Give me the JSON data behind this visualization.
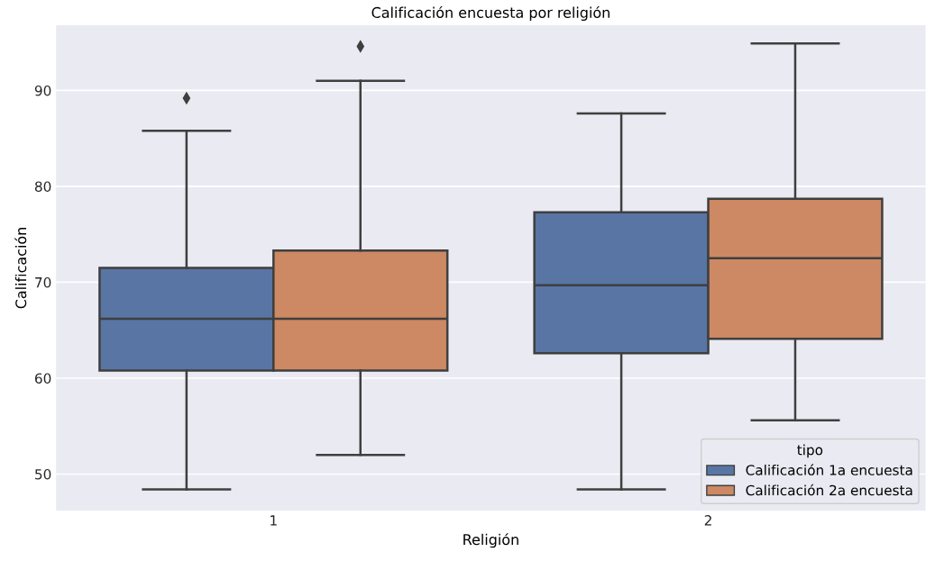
{
  "chart_data": {
    "type": "box",
    "title": "Calificación encuesta por religión",
    "xlabel": "Religión",
    "ylabel": "Calificación",
    "legend_title": "tipo",
    "categories": [
      "1",
      "2"
    ],
    "series": [
      {
        "name": "Calificación 1a encuesta",
        "color": "#5875a4",
        "boxes": [
          {
            "low": 48.4,
            "q1": 60.8,
            "median": 66.2,
            "q3": 71.5,
            "high": 85.8,
            "outliers": [
              89.2
            ]
          },
          {
            "low": 48.4,
            "q1": 62.6,
            "median": 69.7,
            "q3": 77.3,
            "high": 87.6
          }
        ]
      },
      {
        "name": "Calificación 2a encuesta",
        "color": "#cc8963",
        "boxes": [
          {
            "low": 52.0,
            "q1": 60.8,
            "median": 66.2,
            "q3": 73.3,
            "high": 91.0,
            "outliers": [
              94.6
            ]
          },
          {
            "low": 55.6,
            "q1": 64.1,
            "median": 72.5,
            "q3": 78.7,
            "high": 94.9
          }
        ]
      }
    ],
    "ylim": [
      46.2,
      96.8
    ],
    "yticks": [
      50,
      60,
      70,
      80,
      90
    ],
    "grid": "y",
    "legend": "bottom right",
    "marker": "diamond"
  }
}
